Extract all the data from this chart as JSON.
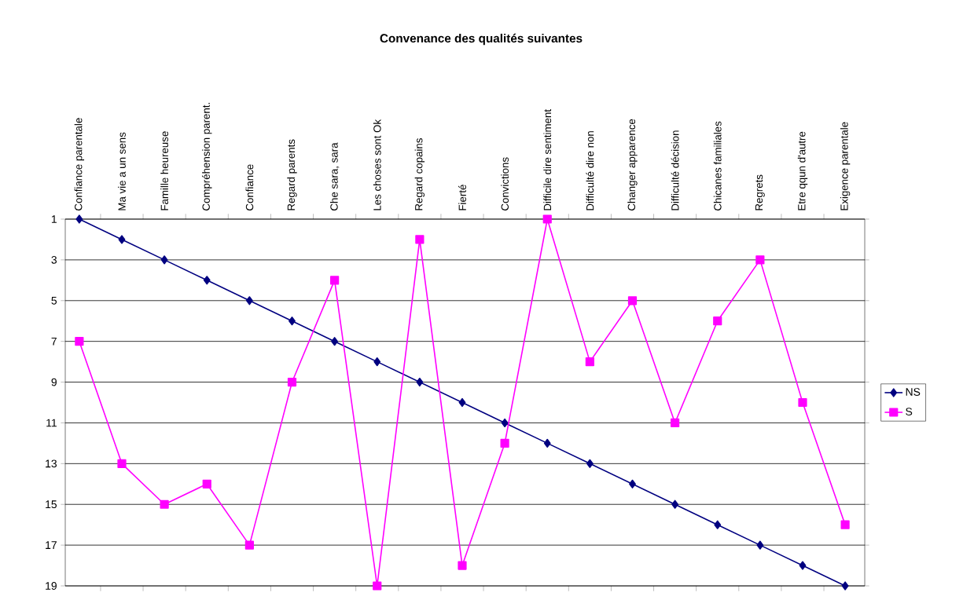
{
  "chart_data": {
    "type": "line",
    "title": "Convenance des qualités suivantes",
    "categories": [
      "Confiance parentale",
      "Ma vie a un sens",
      "Famille heureuse",
      "Compréhension parent.",
      "Confiance",
      "Regard parents",
      "Che sara, sara",
      "Les choses sont Ok",
      "Regard copains",
      "Fierté",
      "Convictions",
      "Difficile dire sentiment",
      "Difficulté dire non",
      "Changer apparence",
      "Difficulté décision",
      "Chicanes familiales",
      "Regrets",
      "Etre qqun d'autre",
      "Exigence parentale"
    ],
    "series": [
      {
        "name": "NS",
        "color": "#000080",
        "marker": "diamond",
        "values": [
          1,
          2,
          3,
          4,
          5,
          6,
          7,
          8,
          9,
          10,
          11,
          12,
          13,
          14,
          15,
          16,
          17,
          18,
          19
        ]
      },
      {
        "name": "S",
        "color": "#ff00ff",
        "marker": "square",
        "values": [
          7,
          13,
          15,
          14,
          17,
          9,
          4,
          19,
          2,
          18,
          12,
          1,
          8,
          5,
          11,
          6,
          3,
          10,
          16
        ]
      }
    ],
    "ylim": [
      19,
      1
    ],
    "yticks": [
      1,
      3,
      5,
      7,
      9,
      11,
      13,
      15,
      17,
      19
    ],
    "grid": "y",
    "legend": "right",
    "line_style": "solid"
  }
}
